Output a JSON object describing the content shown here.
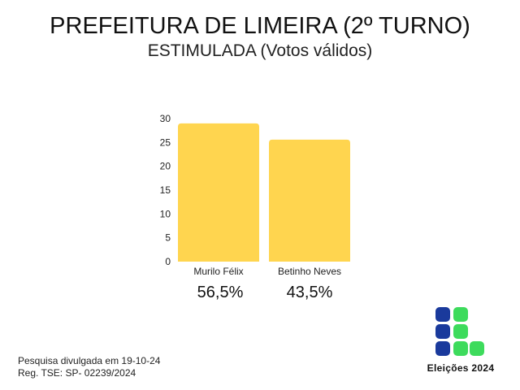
{
  "header": {
    "title": "PREFEITURA DE LIMEIRA (2º TURNO)",
    "subtitle": "ESTIMULADA (Votos válidos)"
  },
  "chart_data": {
    "type": "bar",
    "categories": [
      "Murilo Félix",
      "Betinho Neves"
    ],
    "values": [
      29,
      25.6
    ],
    "value_labels": [
      "56,5%",
      "43,5%"
    ],
    "ylim": [
      0,
      30
    ],
    "yticks": [
      0,
      5,
      10,
      15,
      20,
      25,
      30
    ],
    "grid": false,
    "bar_color": "#FFD54F"
  },
  "footer": {
    "line1": "Pesquisa divulgada em 19-10-24",
    "line2": "Reg. TSE: SP- 02239/2024"
  },
  "logo": {
    "caption": "Eleições 2024",
    "colors": {
      "blue": "#1A3A9C",
      "green": "#3DDB5C"
    }
  }
}
